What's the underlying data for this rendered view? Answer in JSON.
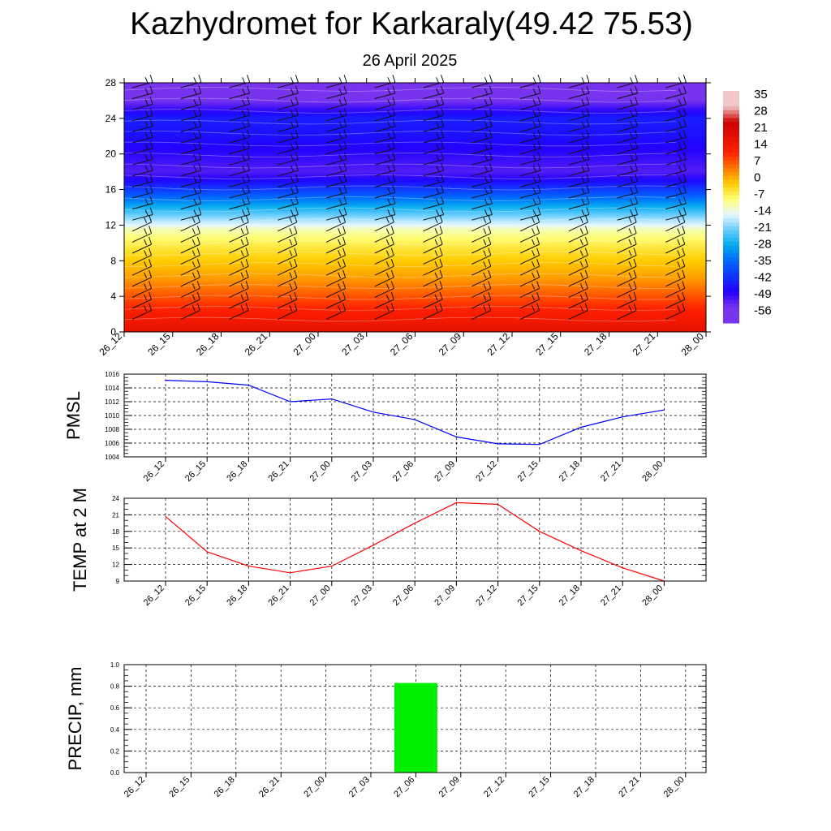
{
  "title": "Kazhydromet for Karkaraly(49.42 75.53)",
  "subtitle": "26 April 2025",
  "colors": {
    "pmsl_line": "#0000ff",
    "temp_line": "#ff0000",
    "precip_bar": "#00ee00"
  },
  "chart_data": [
    {
      "type": "heatmap",
      "title": "",
      "x_ticks": [
        "26_12",
        "26_15",
        "26_18",
        "26_21",
        "27_00",
        "27_03",
        "27_06",
        "27_09",
        "27_12",
        "27_15",
        "27_18",
        "27_21",
        "28_00"
      ],
      "y_ticks": [
        0,
        4,
        8,
        12,
        16,
        20,
        24,
        28
      ],
      "ylim": [
        0,
        28
      ],
      "colorbar": {
        "labels": [
          35,
          28,
          21,
          14,
          7,
          0,
          -7,
          -14,
          -21,
          -28,
          -35,
          -42,
          -49,
          -56
        ],
        "stops": [
          {
            "value": 35,
            "color": "#f0c8c8"
          },
          {
            "value": 28,
            "color": "#cc0000"
          },
          {
            "value": 14,
            "color": "#ff2200"
          },
          {
            "value": 7,
            "color": "#ff7700"
          },
          {
            "value": 0,
            "color": "#ffcc00"
          },
          {
            "value": -7,
            "color": "#ffff77"
          },
          {
            "value": -14,
            "color": "#e6f7ff"
          },
          {
            "value": -21,
            "color": "#66ccff"
          },
          {
            "value": -28,
            "color": "#00aaee"
          },
          {
            "value": -35,
            "color": "#0066ff"
          },
          {
            "value": -49,
            "color": "#2200ff"
          },
          {
            "value": -56,
            "color": "#7733ee"
          }
        ]
      },
      "profile": [
        {
          "level": 0,
          "value": 21
        },
        {
          "level": 2,
          "value": 16
        },
        {
          "level": 4,
          "value": 10
        },
        {
          "level": 6,
          "value": 4
        },
        {
          "level": 8,
          "value": 0
        },
        {
          "level": 10,
          "value": -5
        },
        {
          "level": 11.5,
          "value": -10
        },
        {
          "level": 12,
          "value": -14
        },
        {
          "level": 13,
          "value": -20
        },
        {
          "level": 14,
          "value": -27
        },
        {
          "level": 15,
          "value": -34
        },
        {
          "level": 16,
          "value": -41
        },
        {
          "level": 17,
          "value": -48
        },
        {
          "level": 18,
          "value": -53
        },
        {
          "level": 20,
          "value": -50
        },
        {
          "level": 22,
          "value": -47
        },
        {
          "level": 24,
          "value": -45
        },
        {
          "level": 26,
          "value": -56
        },
        {
          "level": 28,
          "value": -60
        }
      ]
    },
    {
      "type": "line",
      "ylabel": "PMSL",
      "categories": [
        "26_12",
        "26_15",
        "26_18",
        "26_21",
        "27_00",
        "27_03",
        "27_06",
        "27_09",
        "27_12",
        "27_15",
        "27_18",
        "27_21",
        "28_00"
      ],
      "values": [
        1015.1,
        1014.9,
        1014.4,
        1012.0,
        1012.4,
        1010.5,
        1009.4,
        1006.9,
        1005.9,
        1005.8,
        1008.3,
        1009.8,
        1010.8
      ],
      "y_ticks": [
        1004,
        1006,
        1008,
        1010,
        1012,
        1014,
        1016
      ],
      "ylim": [
        1004,
        1016
      ],
      "grid": true
    },
    {
      "type": "line",
      "ylabel": "TEMP at 2 M",
      "categories": [
        "26_12",
        "26_15",
        "26_18",
        "26_21",
        "27_00",
        "27_03",
        "27_06",
        "27_09",
        "27_12",
        "27_15",
        "27_18",
        "27_21",
        "28_00"
      ],
      "values": [
        20.7,
        14.3,
        11.7,
        10.5,
        11.7,
        15.5,
        19.5,
        23.2,
        22.9,
        18.0,
        14.5,
        11.4,
        9.0
      ],
      "y_ticks": [
        9,
        12,
        15,
        18,
        21,
        24
      ],
      "ylim": [
        9,
        24
      ],
      "grid": true
    },
    {
      "type": "bar",
      "ylabel": "PRECIP, mm",
      "categories": [
        "26_12",
        "26_15",
        "26_18",
        "26_21",
        "27_00",
        "27_03",
        "27_06",
        "27_09",
        "27_12",
        "27_15",
        "27_18",
        "27_21",
        "28_00"
      ],
      "values": [
        0,
        0,
        0,
        0,
        0,
        0,
        0.83,
        0,
        0,
        0,
        0,
        0,
        0
      ],
      "y_ticks": [
        "0.0",
        "0.2",
        "0.4",
        "0.6",
        "0.8",
        "1.0"
      ],
      "ylim": [
        0,
        1.0
      ],
      "grid": true
    }
  ]
}
